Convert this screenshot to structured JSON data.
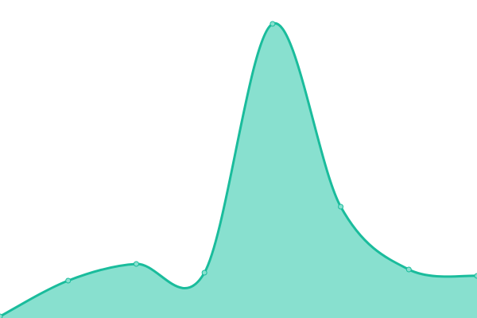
{
  "chart_data": {
    "type": "area",
    "x": [
      0,
      1,
      2,
      3,
      4,
      5,
      6,
      7
    ],
    "values": [
      2,
      47,
      68,
      57,
      370,
      140,
      61,
      53
    ],
    "ylim": [
      0,
      400
    ],
    "grid": false,
    "axes_visible": false,
    "smooth": true,
    "colors": {
      "line": "#1abc9c",
      "fill": "#88e0cf",
      "point_fill": "#88e0cf"
    }
  }
}
